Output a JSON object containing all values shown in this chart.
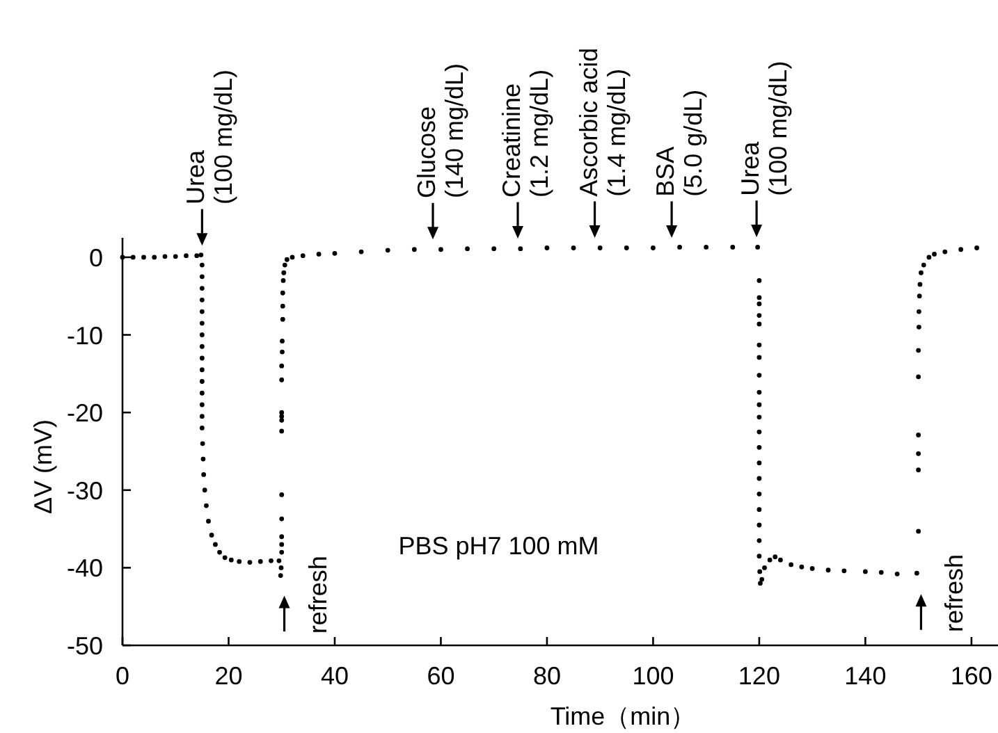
{
  "chart_data": {
    "type": "scatter",
    "xlabel": "Time（min）",
    "ylabel": "ΔV (mV)",
    "color": "#000000",
    "marker": "circle",
    "xlim": [
      0,
      165
    ],
    "ylim": [
      -50,
      2.5
    ],
    "xticks": [
      0,
      20,
      40,
      60,
      80,
      100,
      120,
      140,
      160
    ],
    "yticks": [
      -50,
      -40,
      -30,
      -20,
      -10,
      0
    ],
    "x": [
      0,
      2,
      4,
      6,
      8,
      10,
      12,
      14,
      14.8,
      15,
      15,
      15,
      15,
      15,
      15,
      15,
      15,
      15,
      15,
      15,
      15,
      15,
      15,
      15,
      15.1,
      15.2,
      15.3,
      15.5,
      15.8,
      16.2,
      16.8,
      17.5,
      18.3,
      19.3,
      20.5,
      22,
      24,
      26,
      28,
      29.5,
      29.8,
      29.9,
      30,
      30,
      30,
      30,
      30,
      30,
      30,
      30,
      30,
      30,
      30,
      30.1,
      30.1,
      30.2,
      30.2,
      30.2,
      30.3,
      30.4,
      30.6,
      31,
      32,
      34,
      37,
      40,
      45,
      50,
      55,
      60,
      65,
      70,
      75,
      80,
      85,
      90,
      95,
      100,
      105,
      110,
      115,
      119.7,
      120,
      120,
      120,
      120,
      120,
      120,
      120,
      120,
      120,
      120,
      120,
      120,
      120,
      120,
      120,
      120,
      120,
      120,
      120,
      120,
      120.1,
      120.2,
      120.5,
      121,
      122,
      123,
      124,
      126,
      128,
      130,
      133,
      136,
      140,
      143,
      146,
      149.7,
      150,
      150,
      150,
      150,
      150,
      150,
      150.1,
      150.1,
      150.2,
      150.3,
      150.5,
      151,
      152,
      153,
      155,
      158,
      161
    ],
    "values": [
      0,
      0,
      0,
      0,
      0.1,
      0.1,
      0.2,
      0.2,
      0.3,
      -1,
      -2.5,
      -4,
      -5.5,
      -7,
      -8.5,
      -10,
      -11.5,
      -13,
      -14.5,
      -16,
      -17.5,
      -19,
      -20.5,
      -22,
      -24,
      -26,
      -28,
      -30,
      -32,
      -34,
      -35.8,
      -37,
      -38,
      -38.7,
      -39,
      -39.2,
      -39.3,
      -39.2,
      -39.1,
      -39.1,
      -41,
      -40,
      -38,
      -37,
      -36,
      -33.7,
      -30.6,
      -22.4,
      -21,
      -20.5,
      -20,
      -15.8,
      -14,
      -12.2,
      -10.8,
      -8,
      -6.3,
      -4.6,
      -3,
      -2,
      -1,
      -0.3,
      0,
      0.2,
      0.4,
      0.5,
      0.7,
      0.9,
      1.0,
      1.0,
      1.1,
      1.1,
      1.1,
      1.2,
      1.2,
      1.2,
      1.2,
      1.2,
      1.3,
      1.3,
      1.3,
      1.3,
      -3,
      -5.2,
      -6,
      -7.5,
      -8.6,
      -11.3,
      -12.9,
      -15.2,
      -17.4,
      -19,
      -20.6,
      -22.5,
      -24.5,
      -26.5,
      -28.5,
      -30.5,
      -32.5,
      -34.5,
      -36.5,
      -38.5,
      -40.5,
      -42,
      -41.5,
      -40,
      -39,
      -38.6,
      -39,
      -39.6,
      -39.9,
      -40.1,
      -40.3,
      -40.4,
      -40.5,
      -40.6,
      -40.8,
      -40.7,
      -35.3,
      -27.4,
      -25.3,
      -22.9,
      -15.4,
      -12,
      -9,
      -7,
      -5,
      -3.5,
      -2,
      -1,
      0,
      0.4,
      0.7,
      1,
      1.2
    ],
    "annotations": [
      {
        "text": "Urea (100 mg/dL)",
        "x": 15,
        "y": 0.2
      },
      {
        "text": "Glucose (140 mg/dL)",
        "x": 58.5,
        "y": 1.0
      },
      {
        "text": "Creatinine (1.2 mg/dL)",
        "x": 74.5,
        "y": 1.1
      },
      {
        "text": "Ascorbic acid (1.4 mg/dL)",
        "x": 89,
        "y": 1.2
      },
      {
        "text": "BSA (5.0 g/dL)",
        "x": 103.5,
        "y": 1.2
      },
      {
        "text": "Urea (100 mg/dL)",
        "x": 119.5,
        "y": 1.3
      },
      {
        "text": "refresh",
        "x": 30.5,
        "y": -41
      },
      {
        "text": "refresh",
        "x": 150.5,
        "y": -40.8
      },
      "PBS pH7 100 mM"
    ]
  }
}
